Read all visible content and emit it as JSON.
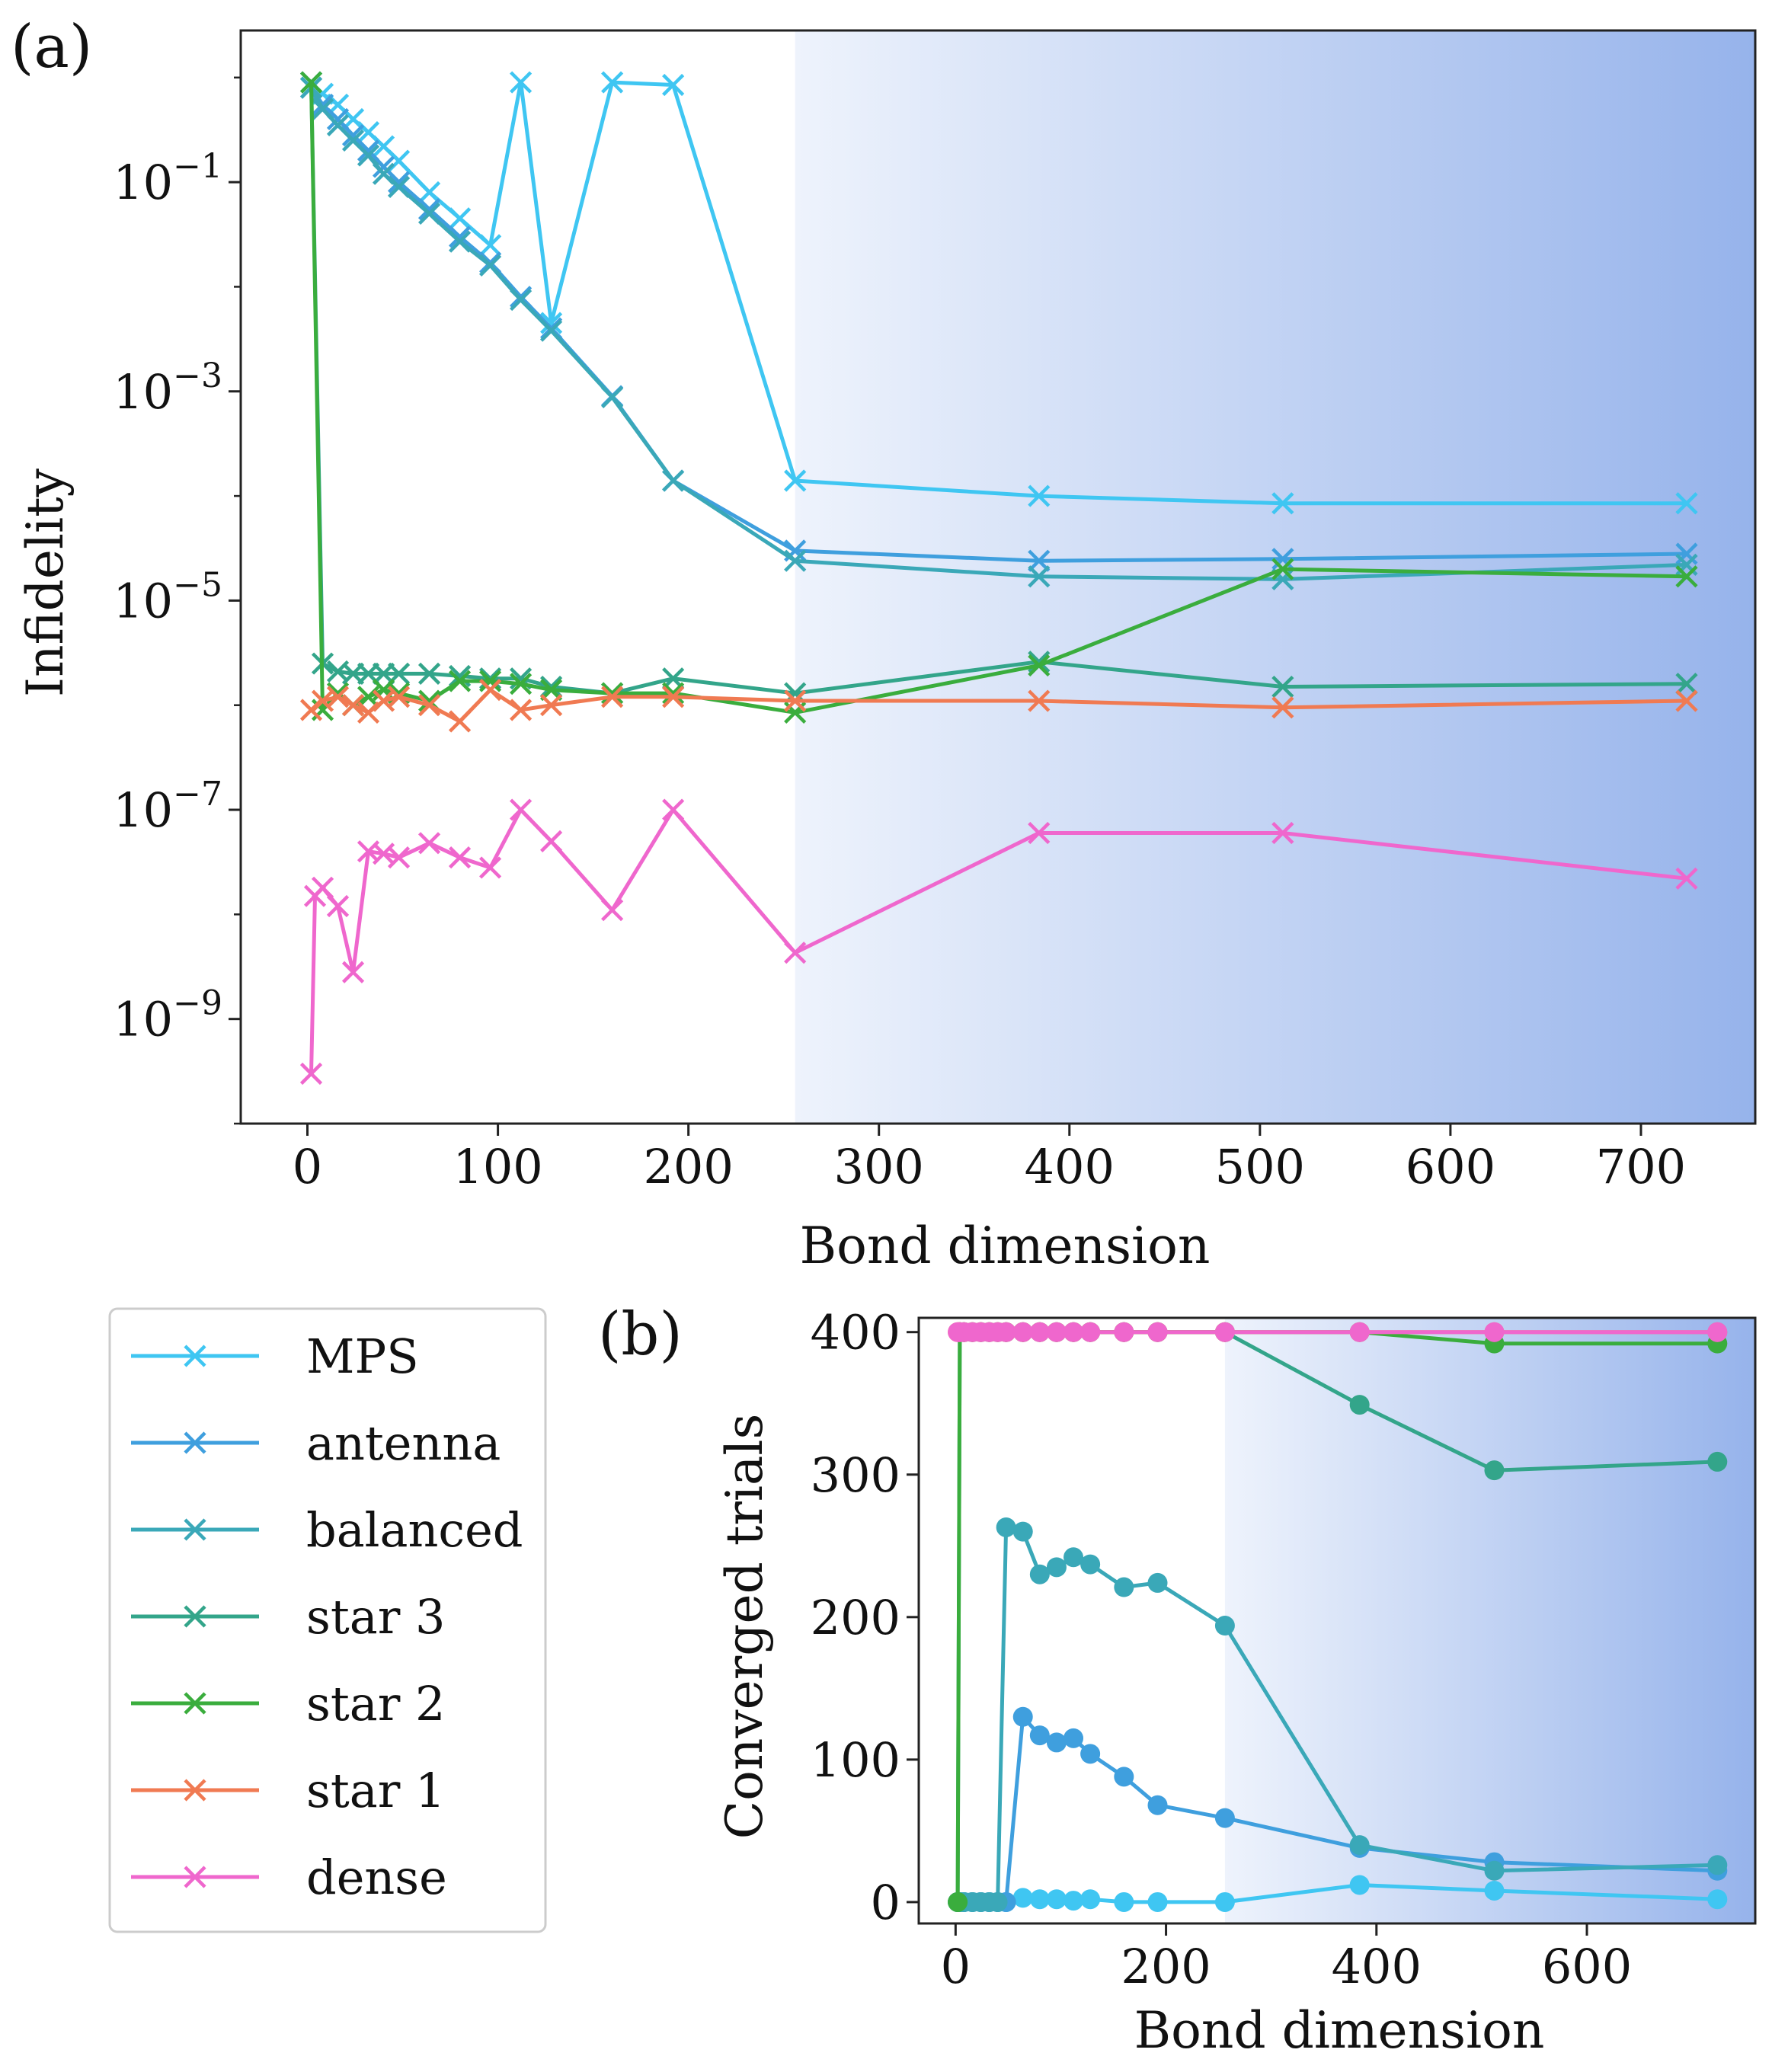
{
  "figure": {
    "panel_a_label": "(a)",
    "panel_b_label": "(b)"
  },
  "colors": {
    "MPS": "#3fc6f2",
    "antenna": "#3f9fde",
    "balanced": "#3aa8b8",
    "star 3": "#33a58a",
    "star 2": "#3aad3d",
    "star 1": "#f07a52",
    "dense": "#ef67cd",
    "gradient_start": "#eef3fc",
    "gradient_end": "#96b3eb"
  },
  "legend": {
    "entries": [
      {
        "name": "MPS",
        "label": "MPS"
      },
      {
        "name": "antenna",
        "label": "antenna"
      },
      {
        "name": "balanced",
        "label": "balanced"
      },
      {
        "name": "star 3",
        "label": "star 3"
      },
      {
        "name": "star 2",
        "label": "star 2"
      },
      {
        "name": "star 1",
        "label": "star 1"
      },
      {
        "name": "dense",
        "label": "dense"
      }
    ]
  },
  "chart_data": [
    {
      "id": "a",
      "type": "line",
      "yscale": "log",
      "xlabel": "Bond dimension",
      "ylabel": "Infidelity",
      "xlim": [
        -35,
        760
      ],
      "ylim_exp": [
        -10.0,
        0.45
      ],
      "xticks": [
        0,
        100,
        200,
        300,
        400,
        500,
        600,
        700
      ],
      "xtick_labels": [
        "0",
        "100",
        "200",
        "300",
        "400",
        "500",
        "600",
        "700"
      ],
      "yticks_exp": [
        -1,
        -3,
        -5,
        -7,
        -9
      ],
      "ytick_labels": [
        "10",
        "10",
        "10",
        "10",
        "10"
      ],
      "ytick_exponents": [
        "−1",
        "−3",
        "−5",
        "−7",
        "−9"
      ],
      "shade_from_x": 256,
      "marker": "x",
      "series": [
        {
          "name": "MPS",
          "x": [
            2,
            8,
            16,
            24,
            32,
            40,
            48,
            64,
            80,
            96,
            112,
            128,
            160,
            192,
            256,
            384,
            512,
            724
          ],
          "y": [
            0.9,
            0.7,
            0.55,
            0.4,
            0.3,
            0.22,
            0.16,
            0.08,
            0.045,
            0.025,
            0.9,
            0.0045,
            0.9,
            0.85,
            0.00014,
            0.0001,
            8.5e-05,
            8.5e-05
          ]
        },
        {
          "name": "antenna",
          "x": [
            2,
            8,
            16,
            24,
            32,
            40,
            48,
            64,
            80,
            96,
            112,
            128,
            160,
            192,
            256,
            384,
            512,
            724
          ],
          "y": [
            0.8,
            0.55,
            0.4,
            0.28,
            0.2,
            0.14,
            0.1,
            0.055,
            0.03,
            0.017,
            0.008,
            0.004,
            0.0009,
            0.00014,
            3e-05,
            2.4e-05,
            2.5e-05,
            2.8e-05
          ]
        },
        {
          "name": "balanced",
          "x": [
            2,
            8,
            16,
            24,
            32,
            40,
            48,
            64,
            80,
            96,
            112,
            128,
            160,
            192,
            256,
            384,
            512,
            724
          ],
          "y": [
            0.8,
            0.5,
            0.35,
            0.25,
            0.18,
            0.12,
            0.09,
            0.05,
            0.027,
            0.016,
            0.0075,
            0.0038,
            0.00088,
            0.00014,
            2.4e-05,
            1.7e-05,
            1.6e-05,
            2.2e-05
          ]
        },
        {
          "name": "star 3",
          "x": [
            2,
            8,
            16,
            24,
            32,
            40,
            48,
            64,
            80,
            96,
            112,
            128,
            160,
            192,
            256,
            384,
            512,
            724
          ],
          "y": [
            0.9,
            2.5e-06,
            2.1e-06,
            2e-06,
            2e-06,
            2e-06,
            2e-06,
            2e-06,
            1.9e-06,
            1.8e-06,
            1.8e-06,
            1.5e-06,
            1.3e-06,
            1.8e-06,
            1.3e-06,
            2.6e-06,
            1.5e-06,
            1.6e-06
          ]
        },
        {
          "name": "star 2",
          "x": [
            2,
            8,
            16,
            24,
            32,
            40,
            48,
            64,
            80,
            96,
            112,
            128,
            160,
            192,
            256,
            384,
            512,
            724
          ],
          "y": [
            0.9,
            9e-07,
            1.3e-06,
            1e-06,
            1.2e-06,
            1.4e-06,
            1.3e-06,
            1.1e-06,
            1.7e-06,
            1.7e-06,
            1.6e-06,
            1.4e-06,
            1.3e-06,
            1.3e-06,
            8.5e-07,
            2.4e-06,
            2e-05,
            1.7e-05
          ]
        },
        {
          "name": "star 1",
          "x": [
            2,
            8,
            16,
            24,
            32,
            40,
            48,
            64,
            80,
            96,
            112,
            128,
            160,
            192,
            256,
            384,
            512,
            724
          ],
          "y": [
            9e-07,
            1.1e-06,
            1.2e-06,
            1e-06,
            8.5e-07,
            1.1e-06,
            1.2e-06,
            1e-06,
            7e-07,
            1.4e-06,
            9e-07,
            1e-06,
            1.2e-06,
            1.2e-06,
            1.1e-06,
            1.1e-06,
            9.5e-07,
            1.1e-06
          ]
        },
        {
          "name": "dense",
          "x": [
            2,
            4,
            8,
            16,
            24,
            32,
            40,
            48,
            64,
            80,
            96,
            112,
            128,
            160,
            192,
            256,
            384,
            512,
            724
          ],
          "y": [
            3e-10,
            1.5e-08,
            1.8e-08,
            1.2e-08,
            2.8e-09,
            4e-08,
            3.8e-08,
            3.5e-08,
            4.8e-08,
            3.5e-08,
            2.8e-08,
            1e-07,
            5e-08,
            1.1e-08,
            1e-07,
            4.3e-09,
            6e-08,
            6e-08,
            2.2e-08
          ]
        }
      ]
    },
    {
      "id": "b",
      "type": "line",
      "yscale": "linear",
      "xlabel": "Bond dimension",
      "ylabel": "Converged trials",
      "xlim": [
        -35,
        760
      ],
      "ylim": [
        -15,
        410
      ],
      "xticks": [
        0,
        200,
        400,
        600
      ],
      "xtick_labels": [
        "0",
        "200",
        "400",
        "600"
      ],
      "yticks": [
        0,
        100,
        200,
        300,
        400
      ],
      "ytick_labels": [
        "0",
        "100",
        "200",
        "300",
        "400"
      ],
      "shade_from_x": 256,
      "marker": "o",
      "series": [
        {
          "name": "MPS",
          "x": [
            2,
            4,
            8,
            16,
            24,
            32,
            40,
            48,
            64,
            80,
            96,
            112,
            128,
            160,
            192,
            256,
            384,
            512,
            724
          ],
          "y": [
            0,
            0,
            0,
            0,
            0,
            0,
            0,
            0,
            3,
            2,
            2,
            1,
            2,
            0,
            0,
            0,
            12,
            8,
            2
          ]
        },
        {
          "name": "antenna",
          "x": [
            2,
            4,
            8,
            16,
            24,
            32,
            40,
            48,
            64,
            80,
            96,
            112,
            128,
            160,
            192,
            256,
            384,
            512,
            724
          ],
          "y": [
            0,
            0,
            0,
            0,
            0,
            0,
            0,
            0,
            130,
            117,
            112,
            115,
            104,
            88,
            68,
            59,
            38,
            28,
            22
          ]
        },
        {
          "name": "balanced",
          "x": [
            2,
            4,
            8,
            16,
            24,
            32,
            40,
            48,
            64,
            80,
            96,
            112,
            128,
            160,
            192,
            256,
            384,
            512,
            724
          ],
          "y": [
            0,
            0,
            0,
            0,
            0,
            0,
            0,
            263,
            260,
            230,
            235,
            242,
            237,
            221,
            224,
            194,
            40,
            22,
            26
          ]
        },
        {
          "name": "star 3",
          "x": [
            2,
            4,
            8,
            16,
            24,
            32,
            40,
            48,
            64,
            80,
            96,
            112,
            128,
            160,
            192,
            256,
            384,
            512,
            724
          ],
          "y": [
            0,
            400,
            400,
            400,
            400,
            400,
            400,
            400,
            400,
            400,
            400,
            400,
            400,
            400,
            400,
            400,
            349,
            303,
            309
          ]
        },
        {
          "name": "star 2",
          "x": [
            2,
            4,
            8,
            16,
            24,
            32,
            40,
            48,
            64,
            80,
            96,
            112,
            128,
            160,
            192,
            256,
            384,
            512,
            724
          ],
          "y": [
            0,
            400,
            400,
            400,
            400,
            400,
            400,
            400,
            400,
            400,
            400,
            400,
            400,
            400,
            400,
            400,
            400,
            392,
            392
          ]
        },
        {
          "name": "star 1",
          "x": [
            2,
            4,
            8,
            16,
            24,
            32,
            40,
            48,
            64,
            80,
            96,
            112,
            128,
            160,
            192,
            256,
            384,
            512,
            724
          ],
          "y": [
            400,
            400,
            400,
            400,
            400,
            400,
            400,
            400,
            400,
            400,
            400,
            400,
            400,
            400,
            400,
            400,
            400,
            400,
            400
          ]
        },
        {
          "name": "dense",
          "x": [
            2,
            4,
            8,
            16,
            24,
            32,
            40,
            48,
            64,
            80,
            96,
            112,
            128,
            160,
            192,
            256,
            384,
            512,
            724
          ],
          "y": [
            400,
            400,
            400,
            400,
            400,
            400,
            400,
            400,
            400,
            400,
            400,
            400,
            400,
            400,
            400,
            400,
            400,
            400,
            400
          ]
        }
      ]
    }
  ]
}
